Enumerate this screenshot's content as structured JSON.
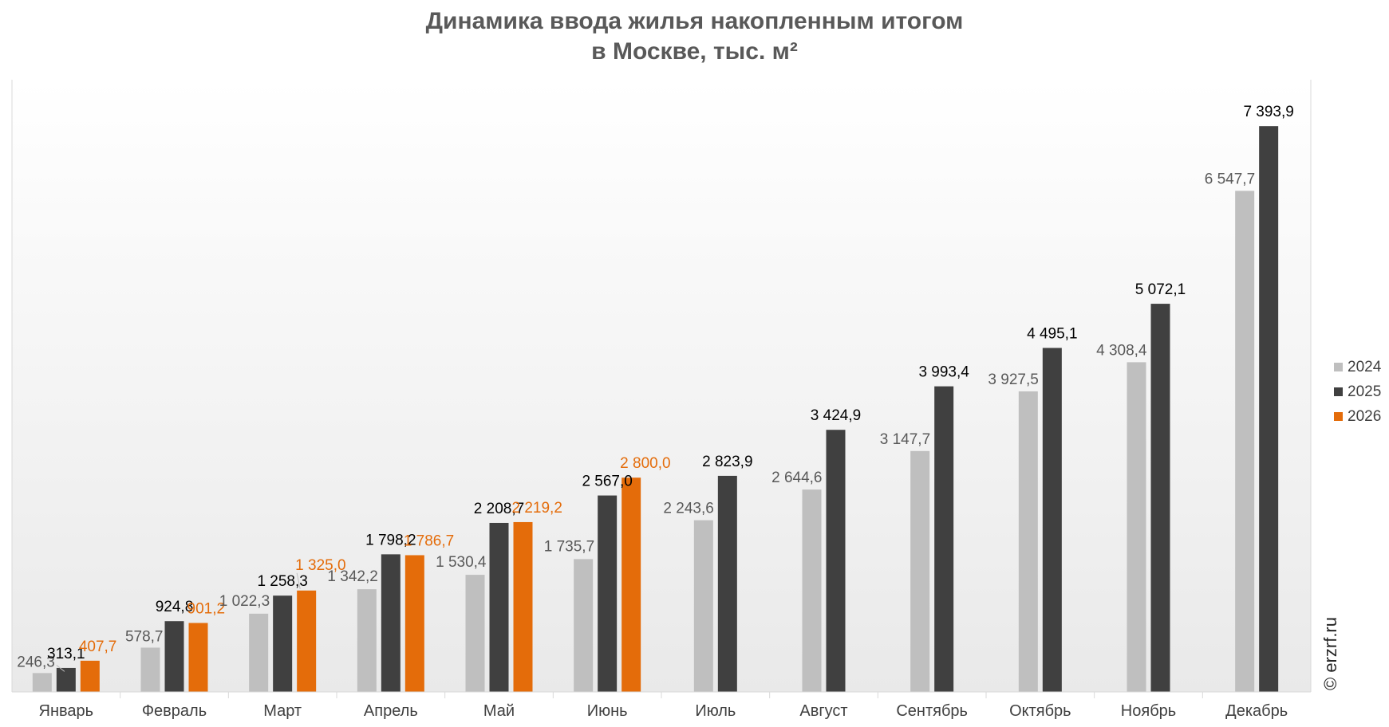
{
  "chart_data": {
    "type": "bar",
    "title_line1": "Динамика ввода жилья накопленным итогом",
    "title_line2": "в Москве, тыс. м²",
    "categories": [
      "Январь",
      "Февраль",
      "Март",
      "Апрель",
      "Май",
      "Июнь",
      "Июль",
      "Август",
      "Сентябрь",
      "Октябрь",
      "Ноябрь",
      "Декабрь"
    ],
    "series": [
      {
        "name": "2024",
        "color": "#bfbfbf",
        "label_color": "#595959",
        "values": [
          246.3,
          578.7,
          1022.3,
          1342.2,
          1530.4,
          1735.7,
          2243.6,
          2644.6,
          3147.7,
          3927.5,
          4308.4,
          6547.7
        ],
        "labels": [
          "246,3",
          "578,7",
          "1 022,3",
          "1 342,2",
          "1 530,4",
          "1 735,7",
          "2 243,6",
          "2 644,6",
          "3 147,7",
          "3 927,5",
          "4 308,4",
          "6 547,7"
        ]
      },
      {
        "name": "2025",
        "color": "#404040",
        "label_color": "#000000",
        "values": [
          313.1,
          924.8,
          1258.3,
          1798.2,
          2208.7,
          2567.0,
          2823.9,
          3424.9,
          3993.4,
          4495.1,
          5072.1,
          7393.9
        ],
        "labels": [
          "313,1",
          "924,8",
          "1 258,3",
          "1 798,2",
          "2 208,7",
          "2 567,0",
          "2 823,9",
          "3 424,9",
          "3 993,4",
          "4 495,1",
          "5 072,1",
          "7 393,9"
        ]
      },
      {
        "name": "2026",
        "color": "#e46c0a",
        "label_color": "#e46c0a",
        "values": [
          407.7,
          901.2,
          1325.0,
          1786.7,
          2219.2,
          2800.0,
          null,
          null,
          null,
          null,
          null,
          null
        ],
        "labels": [
          "407,7",
          "901,2",
          "1 325,0",
          "1 786,7",
          "2 219,2",
          "2 800,0",
          null,
          null,
          null,
          null,
          null,
          null
        ]
      }
    ],
    "ylim": [
      0,
      8000
    ],
    "grid": false,
    "legend": "right"
  },
  "watermark": "© erzrf.ru"
}
